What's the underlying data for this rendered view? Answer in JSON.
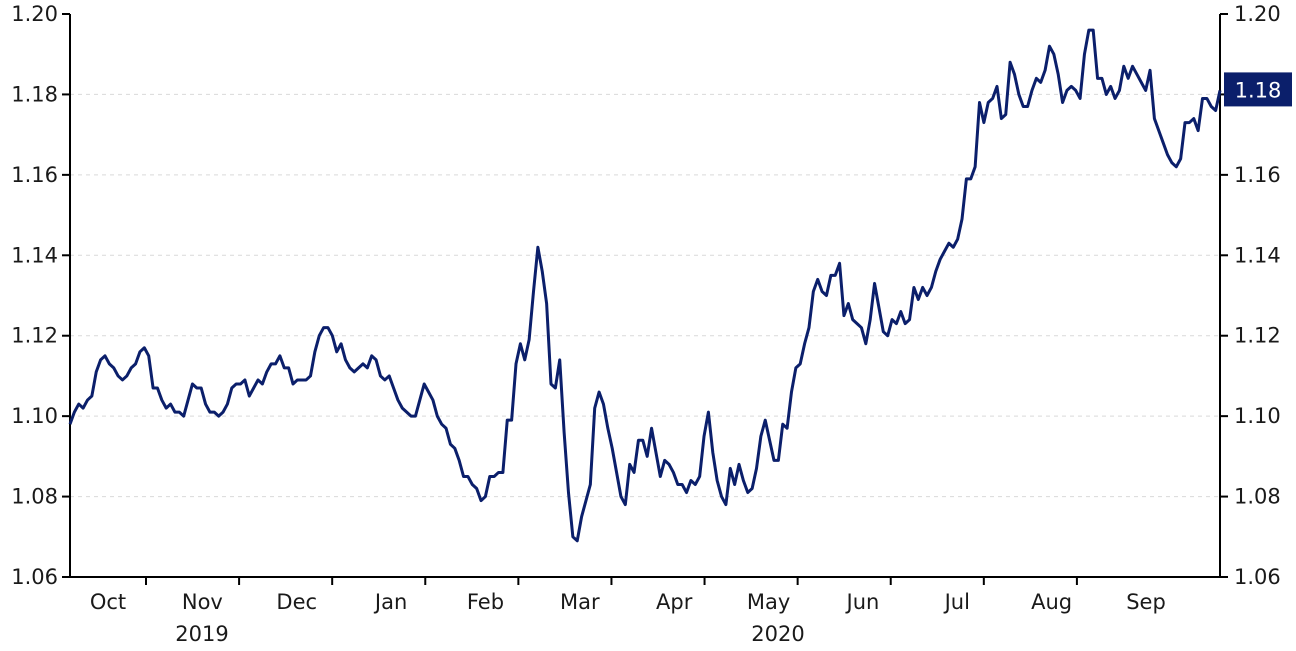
{
  "chart_data": {
    "type": "line",
    "title": "",
    "xlabel": "",
    "ylabel": "",
    "ylim": [
      1.06,
      1.2
    ],
    "yticks": [
      "1.06",
      "1.08",
      "1.10",
      "1.12",
      "1.14",
      "1.16",
      "1.18",
      "1.20"
    ],
    "y_axis_sides": "left-and-right",
    "grid": "horizontal dashed",
    "line_color": "#0b1f6b",
    "last_value_label": "1.18",
    "months": [
      "Oct",
      "Nov",
      "Dec",
      "Jan",
      "Feb",
      "Mar",
      "Apr",
      "May",
      "Jun",
      "Jul",
      "Aug",
      "Sep"
    ],
    "years": [
      "2019",
      "2020"
    ],
    "series": [
      {
        "values": [
          1.098,
          1.101,
          1.103,
          1.102,
          1.104,
          1.105,
          1.111,
          1.114,
          1.115,
          1.113,
          1.112,
          1.11,
          1.109,
          1.11,
          1.112,
          1.113,
          1.116,
          1.117,
          1.115,
          1.107,
          1.107,
          1.104,
          1.102,
          1.103,
          1.101,
          1.101,
          1.1,
          1.104,
          1.108,
          1.107,
          1.107,
          1.103,
          1.101,
          1.101,
          1.1,
          1.101,
          1.103,
          1.107,
          1.108,
          1.108,
          1.109,
          1.105,
          1.107,
          1.109,
          1.108,
          1.111,
          1.113,
          1.113,
          1.115,
          1.112,
          1.112,
          1.108,
          1.109,
          1.109,
          1.109,
          1.11,
          1.116,
          1.12,
          1.122,
          1.122,
          1.12,
          1.116,
          1.118,
          1.114,
          1.112,
          1.111,
          1.112,
          1.113,
          1.112,
          1.115,
          1.114,
          1.11,
          1.109,
          1.11,
          1.107,
          1.104,
          1.102,
          1.101,
          1.1,
          1.1,
          1.104,
          1.108,
          1.106,
          1.104,
          1.1,
          1.098,
          1.097,
          1.093,
          1.092,
          1.089,
          1.085,
          1.085,
          1.083,
          1.082,
          1.079,
          1.08,
          1.085,
          1.085,
          1.086,
          1.086,
          1.099,
          1.099,
          1.113,
          1.118,
          1.114,
          1.119,
          1.131,
          1.142,
          1.136,
          1.128,
          1.108,
          1.107,
          1.114,
          1.096,
          1.081,
          1.07,
          1.069,
          1.075,
          1.079,
          1.083,
          1.102,
          1.106,
          1.103,
          1.097,
          1.092,
          1.086,
          1.08,
          1.078,
          1.088,
          1.086,
          1.094,
          1.094,
          1.09,
          1.097,
          1.091,
          1.085,
          1.089,
          1.088,
          1.086,
          1.083,
          1.083,
          1.081,
          1.084,
          1.083,
          1.085,
          1.095,
          1.101,
          1.091,
          1.084,
          1.08,
          1.078,
          1.087,
          1.083,
          1.088,
          1.084,
          1.081,
          1.082,
          1.087,
          1.095,
          1.099,
          1.094,
          1.089,
          1.089,
          1.098,
          1.097,
          1.106,
          1.112,
          1.113,
          1.118,
          1.122,
          1.131,
          1.134,
          1.131,
          1.13,
          1.135,
          1.135,
          1.138,
          1.125,
          1.128,
          1.124,
          1.123,
          1.122,
          1.118,
          1.124,
          1.133,
          1.127,
          1.121,
          1.12,
          1.124,
          1.123,
          1.126,
          1.123,
          1.124,
          1.132,
          1.129,
          1.132,
          1.13,
          1.132,
          1.136,
          1.139,
          1.141,
          1.143,
          1.142,
          1.144,
          1.149,
          1.159,
          1.159,
          1.162,
          1.178,
          1.173,
          1.178,
          1.179,
          1.182,
          1.174,
          1.175,
          1.188,
          1.185,
          1.18,
          1.177,
          1.177,
          1.181,
          1.184,
          1.183,
          1.186,
          1.192,
          1.19,
          1.185,
          1.178,
          1.181,
          1.182,
          1.181,
          1.179,
          1.19,
          1.196,
          1.196,
          1.184,
          1.184,
          1.18,
          1.182,
          1.179,
          1.181,
          1.187,
          1.184,
          1.187,
          1.185,
          1.183,
          1.181,
          1.186,
          1.174,
          1.171,
          1.168,
          1.165,
          1.163,
          1.162,
          1.164,
          1.173,
          1.173,
          1.174,
          1.171,
          1.179,
          1.179,
          1.177,
          1.176,
          1.181
        ]
      }
    ]
  }
}
